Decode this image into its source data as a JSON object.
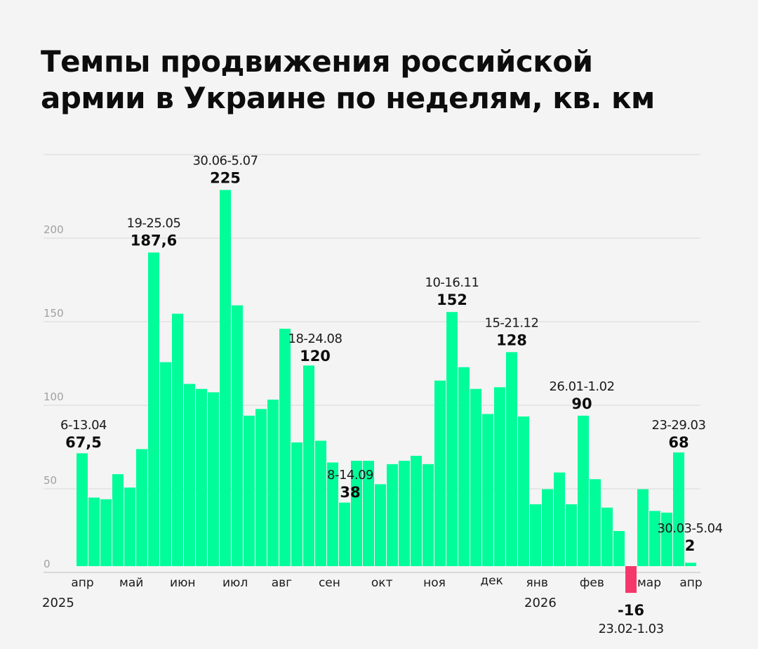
{
  "chart_data": {
    "type": "bar",
    "title": "Темпы продвижения российской армии в Украине по неделям, кв. км",
    "title_lines": [
      "Темпы продвижения российской",
      "армии в Украине по неделям, кв. км"
    ],
    "xlabel": "",
    "ylabel": "",
    "ylim": [
      -16,
      250
    ],
    "y_ticks": [
      0,
      50,
      100,
      150,
      200
    ],
    "y_tick_labels": [
      "0",
      "50",
      "100",
      "150",
      "200"
    ],
    "grid": true,
    "colors": {
      "positive": "#00fd9a",
      "negative": "#f5386a",
      "grid": "#d9d9d9"
    },
    "values": [
      67.5,
      41,
      40,
      55,
      47,
      70,
      187.6,
      122,
      151,
      109,
      106,
      104,
      225,
      156,
      90,
      94,
      99.6,
      142,
      74,
      120,
      75,
      62,
      38,
      63,
      63,
      49,
      61,
      63,
      66,
      61,
      111,
      152,
      119,
      106,
      91,
      107,
      128,
      89.5,
      37,
      46,
      56,
      37,
      90,
      52,
      35,
      21,
      -16,
      46,
      33,
      32,
      68,
      2
    ],
    "month_labels": [
      {
        "label": "апр",
        "week_index": 0.5
      },
      {
        "label": "май",
        "week_index": 4.6
      },
      {
        "label": "июн",
        "week_index": 8.9
      },
      {
        "label": "июл",
        "week_index": 13.3
      },
      {
        "label": "авг",
        "week_index": 17.2
      },
      {
        "label": "сен",
        "week_index": 21.2
      },
      {
        "label": "окт",
        "week_index": 25.6
      },
      {
        "label": "ноя",
        "week_index": 30.0
      },
      {
        "label": "дек",
        "week_index": 34.8
      },
      {
        "label": "янв",
        "week_index": 38.6
      },
      {
        "label": "фев",
        "week_index": 43.2
      },
      {
        "label": "мар",
        "week_index": 48.0
      },
      {
        "label": "апр",
        "week_index": 51.5
      }
    ],
    "year_labels": [
      {
        "label": "2025",
        "week_index": 0
      },
      {
        "label": "2026",
        "week_index": 38
      }
    ],
    "annotations": [
      {
        "date": "6-13.04",
        "value": "67,5",
        "week_index": 0
      },
      {
        "date": "19-25.05",
        "value": "187,6",
        "week_index": 6
      },
      {
        "date": "30.06-5.07",
        "value": "225",
        "week_index": 12
      },
      {
        "date": "18-24.08",
        "value": "120",
        "week_index": 19
      },
      {
        "date": "8-14.09",
        "value": "38",
        "week_index": 22
      },
      {
        "date": "10-16.11",
        "value": "152",
        "week_index": 31
      },
      {
        "date": "15-21.12",
        "value": "128",
        "week_index": 36
      },
      {
        "date": "26.01-1.02",
        "value": "90",
        "week_index": 42
      },
      {
        "date": "23.02-1.03",
        "value": "-16",
        "week_index": 46
      },
      {
        "date": "23-29.03",
        "value": "68",
        "week_index": 50
      },
      {
        "date": "30.03-5.04",
        "value": "2",
        "week_index": 51
      }
    ]
  }
}
